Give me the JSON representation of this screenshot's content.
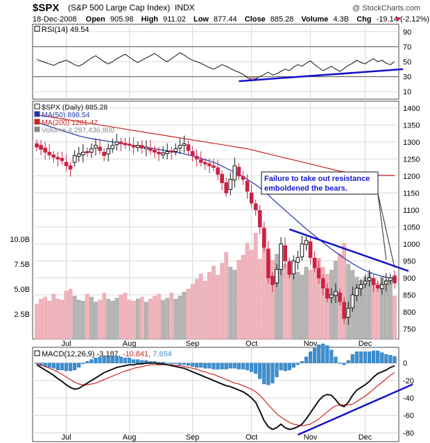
{
  "header": {
    "symbol": "$SPX",
    "name": "(S&P 500 Large Cap Index)",
    "exchange": "INDX",
    "copyright": "@ StockCharts.com",
    "date": "18-Dec-2008",
    "open_label": "Open",
    "open": "905.98",
    "high_label": "High",
    "high": "911.02",
    "low_label": "Low",
    "low": "877.44",
    "close_label": "Close",
    "close": "885.28",
    "volume_label": "Volume",
    "volume": "4.3B",
    "chg_label": "Chg",
    "chg": "-19.14 (-2.12%)"
  },
  "colors": {
    "up": "#111111",
    "down": "#cc2244",
    "ma50": "#2233aa",
    "ma200": "#cc2222",
    "volume_up": "#b5b5b5",
    "volume_down": "#f0b4bc",
    "trendline": "#1111cc",
    "macd_hist": "#3b8fd0",
    "grid": "#d8d8d8"
  },
  "chart_data": [
    {
      "type": "line",
      "name": "rsi",
      "legend": "RSI(14) 49.54",
      "ylim": [
        0,
        100
      ],
      "yticks": [
        10,
        30,
        50,
        70,
        90
      ],
      "levels": [
        30,
        70
      ],
      "values": [
        53,
        51,
        49,
        47,
        45,
        48,
        50,
        52,
        49,
        46,
        44,
        47,
        51,
        55,
        58,
        54,
        50,
        47,
        50,
        54,
        57,
        60,
        56,
        52,
        49,
        52,
        55,
        58,
        61,
        57,
        53,
        50,
        54,
        58,
        62,
        59,
        55,
        52,
        50,
        48,
        45,
        42,
        40,
        43,
        46,
        44,
        41,
        38,
        36,
        33,
        29,
        25,
        27,
        30,
        33,
        36,
        32,
        34,
        37,
        40,
        38,
        43,
        46,
        44,
        48,
        51,
        46,
        42,
        38,
        41,
        44,
        40,
        37,
        41,
        45,
        48,
        52,
        49,
        47,
        51,
        54,
        50,
        52,
        48,
        46,
        50
      ],
      "trendline": [
        [
          48,
          24
        ],
        [
          86,
          40
        ]
      ]
    },
    {
      "type": "candlestick",
      "name": "price",
      "legend": [
        {
          "label": "$SPX (Daily) 885.28",
          "color": "#111111"
        },
        {
          "label": "MA(50) 898.54",
          "color": "#2233aa"
        },
        {
          "label": "MA(200) 1201.47",
          "color": "#cc2222"
        },
        {
          "label": "Volume 4,287,436,800",
          "color": "#888888"
        }
      ],
      "ylim": [
        720,
        1420
      ],
      "yticks": [
        750,
        800,
        850,
        900,
        950,
        1000,
        1050,
        1100,
        1150,
        1200,
        1250,
        1300,
        1350,
        1400
      ],
      "x_labels": [
        {
          "i": 7,
          "label": "Jul"
        },
        {
          "i": 22,
          "label": "Aug"
        },
        {
          "i": 37,
          "label": "Sep"
        },
        {
          "i": 51,
          "label": "Oct"
        },
        {
          "i": 65,
          "label": "Nov"
        },
        {
          "i": 78,
          "label": "Dec"
        }
      ],
      "close": [
        1285,
        1278,
        1270,
        1262,
        1255,
        1250,
        1245,
        1230,
        1220,
        1260,
        1265,
        1270,
        1268,
        1280,
        1290,
        1275,
        1260,
        1280,
        1290,
        1300,
        1295,
        1292,
        1290,
        1285,
        1290,
        1282,
        1285,
        1275,
        1270,
        1265,
        1268,
        1272,
        1270,
        1280,
        1290,
        1295,
        1275,
        1260,
        1250,
        1240,
        1235,
        1230,
        1225,
        1205,
        1180,
        1150,
        1190,
        1230,
        1200,
        1190,
        1155,
        1120,
        1100,
        1050,
        990,
        900,
        880,
        925,
        1000,
        950,
        910,
        950,
        960,
        1000,
        1010,
        960,
        930,
        900,
        870,
        840,
        850,
        860,
        830,
        780,
        810,
        850,
        870,
        880,
        890,
        900,
        880,
        870,
        880,
        890,
        900,
        885
      ],
      "open": [
        1295,
        1290,
        1282,
        1270,
        1262,
        1255,
        1252,
        1240,
        1230,
        1240,
        1258,
        1262,
        1272,
        1270,
        1282,
        1285,
        1270,
        1265,
        1280,
        1292,
        1300,
        1296,
        1294,
        1290,
        1284,
        1290,
        1280,
        1282,
        1276,
        1270,
        1262,
        1266,
        1274,
        1272,
        1282,
        1290,
        1292,
        1272,
        1258,
        1248,
        1240,
        1236,
        1230,
        1224,
        1205,
        1180,
        1160,
        1188,
        1226,
        1198,
        1185,
        1150,
        1118,
        1098,
        1045,
        985,
        905,
        885,
        925,
        995,
        948,
        912,
        946,
        962,
        998,
        1006,
        958,
        928,
        898,
        868,
        842,
        848,
        856,
        828,
        784,
        812,
        848,
        868,
        882,
        892,
        898,
        878,
        868,
        882,
        892,
        905.98
      ],
      "ma50": [
        1360,
        1355,
        1350,
        1346,
        1342,
        1338,
        1334,
        1330,
        1326,
        1322,
        1318,
        1315,
        1312,
        1310,
        1308,
        1306,
        1304,
        1302,
        1300,
        1298,
        1296,
        1294,
        1292,
        1290,
        1288,
        1286,
        1284,
        1282,
        1280,
        1278,
        1276,
        1274,
        1272,
        1270,
        1268,
        1265,
        1262,
        1259,
        1256,
        1252,
        1248,
        1244,
        1240,
        1235,
        1229,
        1223,
        1217,
        1211,
        1205,
        1198,
        1190,
        1182,
        1174,
        1165,
        1155,
        1144,
        1132,
        1121,
        1110,
        1099,
        1088,
        1077,
        1066,
        1055,
        1044,
        1034,
        1024,
        1014,
        1004,
        994,
        985,
        976,
        967,
        958,
        950,
        942,
        935,
        928,
        922,
        917,
        912,
        908,
        905,
        902,
        900,
        898.54
      ],
      "ma200": [
        1380,
        1378,
        1376,
        1374,
        1372,
        1370,
        1368,
        1366,
        1364,
        1362,
        1360,
        1358,
        1356,
        1354,
        1352,
        1350,
        1348,
        1346,
        1344,
        1342,
        1340,
        1338,
        1336,
        1334,
        1332,
        1330,
        1328,
        1326,
        1324,
        1322,
        1320,
        1318,
        1316,
        1314,
        1312,
        1310,
        1308,
        1306,
        1304,
        1302,
        1300,
        1298,
        1296,
        1294,
        1292,
        1290,
        1288,
        1286,
        1284,
        1282,
        1280,
        1277,
        1274,
        1271,
        1268,
        1265,
        1262,
        1259,
        1256,
        1253,
        1250,
        1247,
        1244,
        1241,
        1238,
        1235,
        1232,
        1229,
        1226,
        1223,
        1220,
        1217,
        1214,
        1212,
        1210,
        1208,
        1206,
        1204.5,
        1203,
        1202.5,
        1202,
        1201.9,
        1201.8,
        1201.7,
        1201.6,
        1201.47
      ],
      "volume_billion": [
        3.5,
        4.0,
        4.2,
        3.8,
        4.5,
        4.0,
        3.9,
        4.8,
        5.0,
        4.3,
        3.9,
        3.8,
        4.5,
        4.2,
        3.7,
        3.9,
        4.6,
        4.0,
        3.8,
        4.1,
        4.4,
        4.6,
        3.9,
        3.8,
        4.0,
        4.2,
        3.7,
        4.0,
        4.3,
        4.5,
        3.9,
        4.1,
        4.6,
        4.0,
        4.3,
        4.7,
        5.0,
        5.5,
        6.0,
        6.5,
        5.8,
        6.7,
        7.3,
        6.4,
        7.6,
        8.7,
        7.2,
        6.9,
        7.9,
        8.4,
        9.6,
        8.9,
        10.6,
        8.0,
        11.2,
        8.5,
        7.9,
        8.5,
        7.9,
        7.5,
        6.9,
        7.3,
        6.7,
        6.4,
        7.2,
        6.9,
        7.8,
        8.1,
        7.2,
        6.5,
        6.9,
        7.8,
        8.5,
        9.6,
        7.5,
        6.9,
        6.2,
        5.9,
        6.2,
        6.6,
        5.8,
        5.6,
        6.2,
        5.9,
        6.1,
        4.3
      ],
      "vol_ticks": [
        {
          "v": 2.5,
          "label": "2.5B"
        },
        {
          "v": 5.0,
          "label": "5.0B"
        },
        {
          "v": 7.5,
          "label": "7.5B"
        },
        {
          "v": 10.0,
          "label": "10.0B"
        }
      ],
      "vol_max": 12.5,
      "trendline": [
        [
          60,
          1043
        ],
        [
          86,
          920
        ]
      ],
      "annotation": {
        "lines": [
          "Failure to take out resistance",
          "emboldened the bears."
        ],
        "pointer_a": [
          83,
          953
        ],
        "pointer_b": [
          85,
          930
        ]
      }
    },
    {
      "type": "line",
      "name": "macd",
      "legend": [
        {
          "label": "MACD(12,26,9)",
          "value": "-3.187",
          "color": "#111111"
        },
        {
          "label": "",
          "value": "-10.841",
          "color": "#cc2222"
        },
        {
          "label": "",
          "value": "7.654",
          "color": "#3b8fd0"
        }
      ],
      "ylim": [
        -90,
        18
      ],
      "yticks": [
        0,
        -20,
        -40,
        -60,
        -80
      ],
      "macd": [
        -2,
        -5,
        -8,
        -11,
        -14,
        -18,
        -21,
        -25,
        -28,
        -30,
        -29,
        -26,
        -23,
        -20,
        -17,
        -14,
        -11,
        -9,
        -7,
        -5,
        -4,
        -3,
        -2,
        -2,
        -1,
        -1,
        0,
        0,
        0,
        -1,
        -1,
        -2,
        -3,
        -4,
        -5,
        -6,
        -8,
        -10,
        -12,
        -14,
        -16,
        -18,
        -20,
        -22,
        -24,
        -26,
        -27,
        -29,
        -31,
        -33,
        -36,
        -40,
        -45,
        -55,
        -66,
        -73,
        -76,
        -74,
        -70,
        -74,
        -76,
        -75,
        -73,
        -70,
        -64,
        -57,
        -50,
        -43,
        -38,
        -36,
        -37,
        -42,
        -48,
        -50,
        -45,
        -37,
        -31,
        -28,
        -25,
        -21,
        -16,
        -12,
        -10,
        -8,
        -5,
        -3.187
      ],
      "signal": [
        -1,
        -2,
        -4,
        -6,
        -8,
        -10,
        -13,
        -16,
        -19,
        -22,
        -24,
        -25,
        -25,
        -24,
        -23,
        -21,
        -19,
        -17,
        -15,
        -13,
        -11,
        -9,
        -8,
        -6,
        -5,
        -4,
        -3,
        -2,
        -2,
        -2,
        -2,
        -2,
        -2,
        -3,
        -3,
        -4,
        -5,
        -6,
        -7,
        -9,
        -10,
        -12,
        -13,
        -15,
        -17,
        -19,
        -21,
        -23,
        -24,
        -26,
        -28,
        -30,
        -33,
        -37,
        -42,
        -48,
        -53,
        -58,
        -62,
        -65,
        -68,
        -70,
        -71,
        -72,
        -71,
        -70,
        -67,
        -64,
        -60,
        -56,
        -52,
        -49,
        -48,
        -48,
        -48,
        -47,
        -44,
        -41,
        -38,
        -34,
        -30,
        -26,
        -22,
        -18,
        -14,
        -10.841
      ],
      "trendline": [
        [
          65,
          -79
        ],
        [
          86,
          -22
        ]
      ]
    }
  ]
}
